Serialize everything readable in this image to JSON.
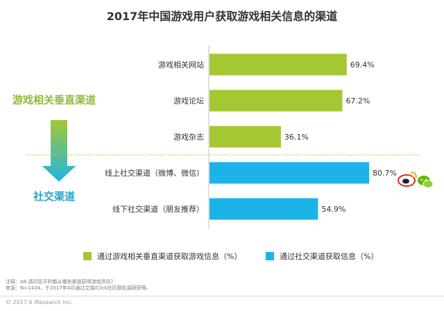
{
  "colors": {
    "green": "#a5c733",
    "cyan": "#1cb4e8",
    "vertical_label": "#8fbc3a",
    "social_label": "#2aa3c9",
    "divider": "#a5c733"
  },
  "chart_data": {
    "type": "bar",
    "orientation": "horizontal",
    "title": "2017年中国游戏用户获取游戏相关信息的渠道",
    "categories": [
      "游戏相关网站",
      "游戏论坛",
      "游戏杂志",
      "线上社交渠道（微博、微信）",
      "线下社交渠道（朋友推荐）"
    ],
    "values": [
      69.4,
      67.2,
      36.1,
      80.7,
      54.9
    ],
    "value_labels": [
      "69.4%",
      "67.2%",
      "36.1%",
      "80.7%",
      "54.9%"
    ],
    "groups": [
      "vertical",
      "vertical",
      "vertical",
      "social",
      "social"
    ],
    "xlim": [
      0,
      100
    ],
    "grid": false,
    "legend": [
      {
        "label": "通过游戏相关垂直渠道获取游戏信息（%）",
        "color": "#a5c733"
      },
      {
        "label": "通过社交渠道获取信息（%）",
        "color": "#1cb4e8"
      }
    ],
    "legend_position": "bottom"
  },
  "side_labels": {
    "vertical": "游戏相关垂直渠道",
    "social": "社交渠道"
  },
  "icons": [
    "weibo-icon",
    "wechat-icon"
  ],
  "notes": {
    "line1": "注释：A8.请问您平时都从哪些渠道获得游戏资讯？",
    "line2": "来源：N=1434，于2017年4月通过艾瑞iClick社区联机调研获得。"
  },
  "copyright": "© 2017.6 iResearch Inc."
}
